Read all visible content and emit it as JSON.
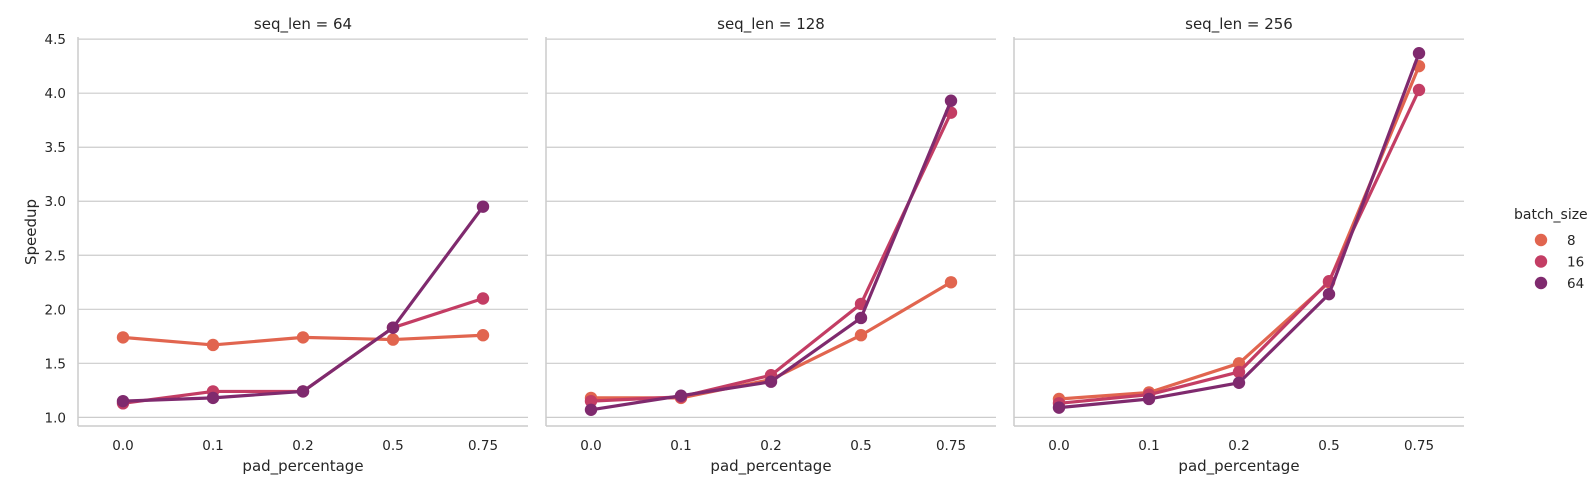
{
  "chart_data": {
    "type": "line",
    "x_label": "pad_percentage",
    "y_label": "Speedup",
    "categories": [
      "0.0",
      "0.1",
      "0.2",
      "0.5",
      "0.75"
    ],
    "y_ticks": [
      "1.0",
      "1.5",
      "2.0",
      "2.5",
      "3.0",
      "3.5",
      "4.0",
      "4.5"
    ],
    "ylim": [
      0.92,
      4.52
    ],
    "grid": true,
    "legend": {
      "title": "batch_size",
      "position": "right",
      "entries": [
        {
          "name": "8",
          "color": "#e1654f"
        },
        {
          "name": "16",
          "color": "#c33d64"
        },
        {
          "name": "64",
          "color": "#7f2a6e"
        }
      ]
    },
    "panels": [
      {
        "title": "seq_len = 64",
        "series": [
          {
            "name": "8",
            "color": "#e1654f",
            "values": [
              1.74,
              1.67,
              1.74,
              1.72,
              1.76
            ]
          },
          {
            "name": "16",
            "color": "#c33d64",
            "values": [
              1.13,
              1.24,
              1.24,
              1.83,
              2.1
            ]
          },
          {
            "name": "64",
            "color": "#7f2a6e",
            "values": [
              1.15,
              1.18,
              1.24,
              1.83,
              2.95
            ]
          }
        ]
      },
      {
        "title": "seq_len = 128",
        "series": [
          {
            "name": "8",
            "color": "#e1654f",
            "values": [
              1.18,
              1.18,
              1.35,
              1.76,
              2.25
            ]
          },
          {
            "name": "16",
            "color": "#c33d64",
            "values": [
              1.15,
              1.19,
              1.39,
              2.05,
              3.82
            ]
          },
          {
            "name": "64",
            "color": "#7f2a6e",
            "values": [
              1.07,
              1.2,
              1.33,
              1.92,
              3.93
            ]
          }
        ]
      },
      {
        "title": "seq_len = 256",
        "series": [
          {
            "name": "8",
            "color": "#e1654f",
            "values": [
              1.17,
              1.23,
              1.5,
              2.25,
              4.25
            ]
          },
          {
            "name": "16",
            "color": "#c33d64",
            "values": [
              1.13,
              1.21,
              1.42,
              2.26,
              4.03
            ]
          },
          {
            "name": "64",
            "color": "#7f2a6e",
            "values": [
              1.09,
              1.17,
              1.32,
              2.14,
              4.37
            ]
          }
        ]
      }
    ]
  }
}
